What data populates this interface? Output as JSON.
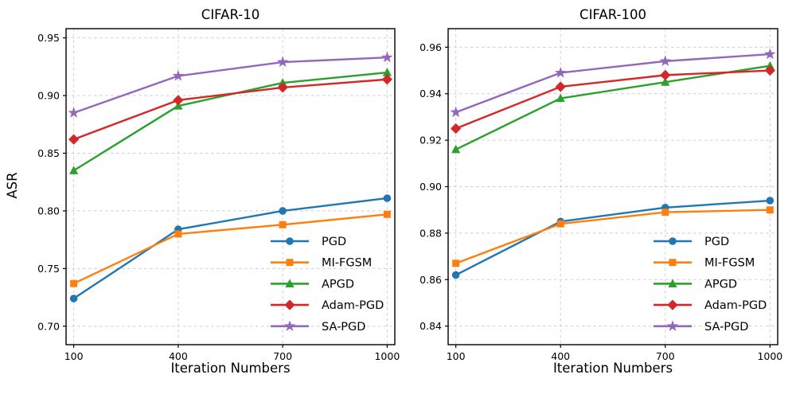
{
  "chart_data": [
    {
      "type": "line",
      "title": "CIFAR-10",
      "xlabel": "Iteration Numbers",
      "ylabel": "ASR",
      "x": [
        100,
        400,
        700,
        1000
      ],
      "x_ticks": [
        100,
        400,
        700,
        1000
      ],
      "y_ticks": [
        0.7,
        0.75,
        0.8,
        0.85,
        0.9,
        0.95
      ],
      "xlim": [
        78,
        1022
      ],
      "ylim": [
        0.684,
        0.958
      ],
      "grid": true,
      "legend_position": "lower right",
      "series": [
        {
          "name": "PGD",
          "color": "#1f77b4",
          "marker": "circle",
          "values": [
            0.724,
            0.784,
            0.8,
            0.811
          ]
        },
        {
          "name": "MI-FGSM",
          "color": "#ff7f0e",
          "marker": "square",
          "values": [
            0.737,
            0.78,
            0.788,
            0.797
          ]
        },
        {
          "name": "APGD",
          "color": "#2ca02c",
          "marker": "triangle",
          "values": [
            0.835,
            0.891,
            0.911,
            0.92
          ]
        },
        {
          "name": "Adam-PGD",
          "color": "#d62728",
          "marker": "diamond",
          "values": [
            0.862,
            0.896,
            0.907,
            0.914
          ]
        },
        {
          "name": "SA-PGD",
          "color": "#9467bd",
          "marker": "star",
          "values": [
            0.885,
            0.917,
            0.929,
            0.933
          ]
        }
      ]
    },
    {
      "type": "line",
      "title": "CIFAR-100",
      "xlabel": "Iteration Numbers",
      "ylabel": "",
      "x": [
        100,
        400,
        700,
        1000
      ],
      "x_ticks": [
        100,
        400,
        700,
        1000
      ],
      "y_ticks": [
        0.84,
        0.86,
        0.88,
        0.9,
        0.92,
        0.94,
        0.96
      ],
      "xlim": [
        78,
        1022
      ],
      "ylim": [
        0.832,
        0.968
      ],
      "grid": true,
      "legend_position": "lower right",
      "series": [
        {
          "name": "PGD",
          "color": "#1f77b4",
          "marker": "circle",
          "values": [
            0.862,
            0.885,
            0.891,
            0.894
          ]
        },
        {
          "name": "MI-FGSM",
          "color": "#ff7f0e",
          "marker": "square",
          "values": [
            0.867,
            0.884,
            0.889,
            0.89
          ]
        },
        {
          "name": "APGD",
          "color": "#2ca02c",
          "marker": "triangle",
          "values": [
            0.916,
            0.938,
            0.945,
            0.952
          ]
        },
        {
          "name": "Adam-PGD",
          "color": "#d62728",
          "marker": "diamond",
          "values": [
            0.925,
            0.943,
            0.948,
            0.95
          ]
        },
        {
          "name": "SA-PGD",
          "color": "#9467bd",
          "marker": "star",
          "values": [
            0.932,
            0.949,
            0.954,
            0.957
          ]
        }
      ]
    }
  ],
  "style": {
    "grid_color": "#cfcfcf",
    "axis_color": "#000000",
    "tick_label_size": 12.5,
    "legend_label_size": 14.5
  }
}
